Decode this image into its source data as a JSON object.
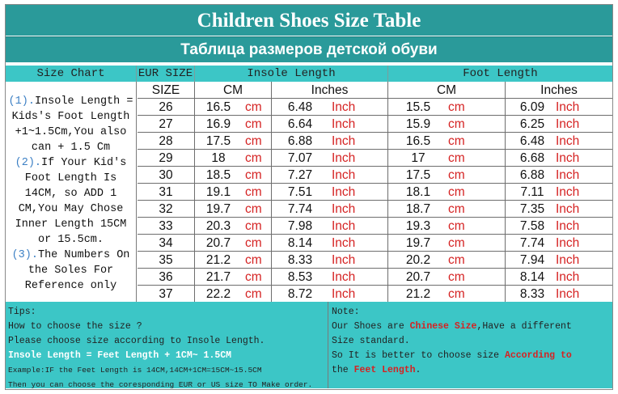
{
  "title": "Children Shoes Size Table",
  "subtitle": "Таблица размеров детской обуви",
  "headers": {
    "size_chart": "Size Chart",
    "eur_size": "EUR SIZE",
    "insole_length": "Insole Length",
    "foot_length": "Foot Length",
    "size": "SIZE",
    "cm": "CM",
    "inches": "Inches"
  },
  "units": {
    "cm": "cm",
    "inch": "Inch"
  },
  "sidebar": {
    "n1": "(1).",
    "line1": "Insole Length =",
    "line2": "Kids's Foot Length",
    "line3": "+1~1.5Cm,You also",
    "line4": "can + 1.5 Cm",
    "n2": "(2).",
    "line5": "If Your Kid's",
    "line6": "Foot Length Is",
    "line7": "14CM,  so ADD 1",
    "line8": "CM,You May Chose",
    "line9": "Inner Length 15CM",
    "line10": "or 15.5cm.",
    "n3": "(3).",
    "line11": "The Numbers On",
    "line12": "the Soles For",
    "line13": "Reference only"
  },
  "rows": [
    {
      "size": "26",
      "insole_cm": "16.5",
      "insole_in": "6.48",
      "foot_cm": "15.5",
      "foot_in": "6.09"
    },
    {
      "size": "27",
      "insole_cm": "16.9",
      "insole_in": "6.64",
      "foot_cm": "15.9",
      "foot_in": "6.25"
    },
    {
      "size": "28",
      "insole_cm": "17.5",
      "insole_in": "6.88",
      "foot_cm": "16.5",
      "foot_in": "6.48"
    },
    {
      "size": "29",
      "insole_cm": "18",
      "insole_in": "7.07",
      "foot_cm": "17",
      "foot_in": "6.68"
    },
    {
      "size": "30",
      "insole_cm": "18.5",
      "insole_in": "7.27",
      "foot_cm": "17.5",
      "foot_in": "6.88"
    },
    {
      "size": "31",
      "insole_cm": "19.1",
      "insole_in": "7.51",
      "foot_cm": "18.1",
      "foot_in": "7.11"
    },
    {
      "size": "32",
      "insole_cm": "19.7",
      "insole_in": "7.74",
      "foot_cm": "18.7",
      "foot_in": "7.35"
    },
    {
      "size": "33",
      "insole_cm": "20.3",
      "insole_in": "7.98",
      "foot_cm": "19.3",
      "foot_in": "7.58"
    },
    {
      "size": "34",
      "insole_cm": "20.7",
      "insole_in": "8.14",
      "foot_cm": "19.7",
      "foot_in": "7.74"
    },
    {
      "size": "35",
      "insole_cm": "21.2",
      "insole_in": "8.33",
      "foot_cm": "20.2",
      "foot_in": "7.94"
    },
    {
      "size": "36",
      "insole_cm": "21.7",
      "insole_in": "8.53",
      "foot_cm": "20.7",
      "foot_in": "8.14"
    },
    {
      "size": "37",
      "insole_cm": "22.2",
      "insole_in": "8.72",
      "foot_cm": "21.2",
      "foot_in": "8.33"
    }
  ],
  "tips": {
    "heading": "Tips:",
    "line1": "How to choose the size ?",
    "line2": "Please choose size according to Insole Length.",
    "line3": "Insole Length = Feet Length + 1CM~ 1.5CM",
    "line4": "Example:IF the Feet Length is 14CM,14CM+1CM=15CM~15.5CM",
    "line5": "Then you can choose the coresponding EUR or US size TO Make order."
  },
  "note": {
    "heading": "Note:",
    "line1_a": "Our Shoes are ",
    "line1_b": "Chinese Size",
    "line1_c": ",Have a different",
    "line2": "Size standard.",
    "line3_a": "So It is better to choose size ",
    "line3_b": "According to",
    "line4_a": "the ",
    "line4_b": "Feet Length",
    "line4_c": "."
  },
  "colors": {
    "teal_dark": "#2a9a9a",
    "teal_light": "#3cc6c6",
    "unit_red": "#d52222",
    "number_blue": "#3b7fc4"
  }
}
